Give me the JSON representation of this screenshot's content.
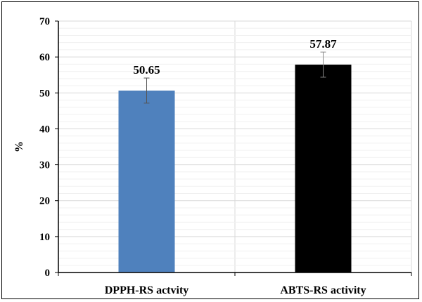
{
  "chart_data": {
    "type": "bar",
    "title": "",
    "xlabel": "",
    "ylabel": "%",
    "ylim": [
      0,
      70
    ],
    "yticks": [
      0,
      10,
      20,
      30,
      40,
      50,
      60,
      70
    ],
    "grid": true,
    "categories": [
      "DPPH-RS actvity",
      "ABTS-RS activity"
    ],
    "values": [
      50.65,
      57.87
    ],
    "errors": [
      3.5,
      3.5
    ],
    "data_labels": [
      "50.65",
      "57.87"
    ],
    "colors": [
      "#4f81bd",
      "#000000"
    ]
  }
}
